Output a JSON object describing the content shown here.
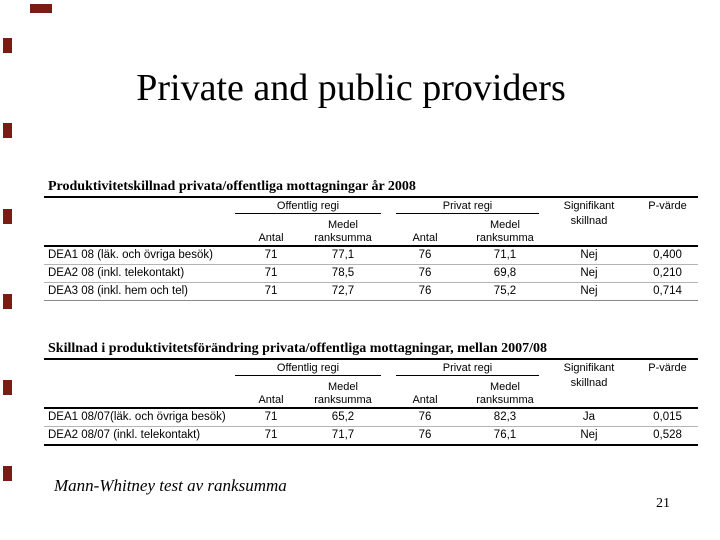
{
  "slide": {
    "title": "Private and public providers",
    "footnote": "Mann-Whitney test av ranksumma",
    "page_number": "21",
    "accent_color": "#7b1b15"
  },
  "headers": {
    "offentlig": "Offentlig regi",
    "privat": "Privat regi",
    "antal": "Antal",
    "medel": "Medel",
    "ranksumma": "ranksumma",
    "signifikant_line1": "Signifikant",
    "signifikant_line2": "skillnad",
    "p_varde": "P-värde"
  },
  "tables": [
    {
      "title": "Produktivitetskillnad privata/offentliga mottagningar år 2008",
      "rows": [
        {
          "label": "DEA1 08 (läk. och övriga besök)",
          "antal_off": "71",
          "medel_off": "77,1",
          "antal_priv": "76",
          "medel_priv": "71,1",
          "signifikant": "Nej",
          "p_varde": "0,400"
        },
        {
          "label": "DEA2 08 (inkl. telekontakt)",
          "antal_off": "71",
          "medel_off": "78,5",
          "antal_priv": "76",
          "medel_priv": "69,8",
          "signifikant": "Nej",
          "p_varde": "0,210"
        },
        {
          "label": "DEA3 08 (inkl. hem och tel)",
          "antal_off": "71",
          "medel_off": "72,7",
          "antal_priv": "76",
          "medel_priv": "75,2",
          "signifikant": "Nej",
          "p_varde": "0,714"
        }
      ]
    },
    {
      "title": "Skillnad i produktivitetsförändring privata/offentliga mottagningar, mellan 2007/08",
      "rows": [
        {
          "label": "DEA1 08/07(läk. och övriga besök)",
          "antal_off": "71",
          "medel_off": "65,2",
          "antal_priv": "76",
          "medel_priv": "82,3",
          "signifikant": "Ja",
          "p_varde": "0,015"
        },
        {
          "label": "DEA2 08/07 (inkl. telekontakt)",
          "antal_off": "71",
          "medel_off": "71,7",
          "antal_priv": "76",
          "medel_priv": "76,1",
          "signifikant": "Nej",
          "p_varde": "0,528"
        }
      ]
    }
  ]
}
